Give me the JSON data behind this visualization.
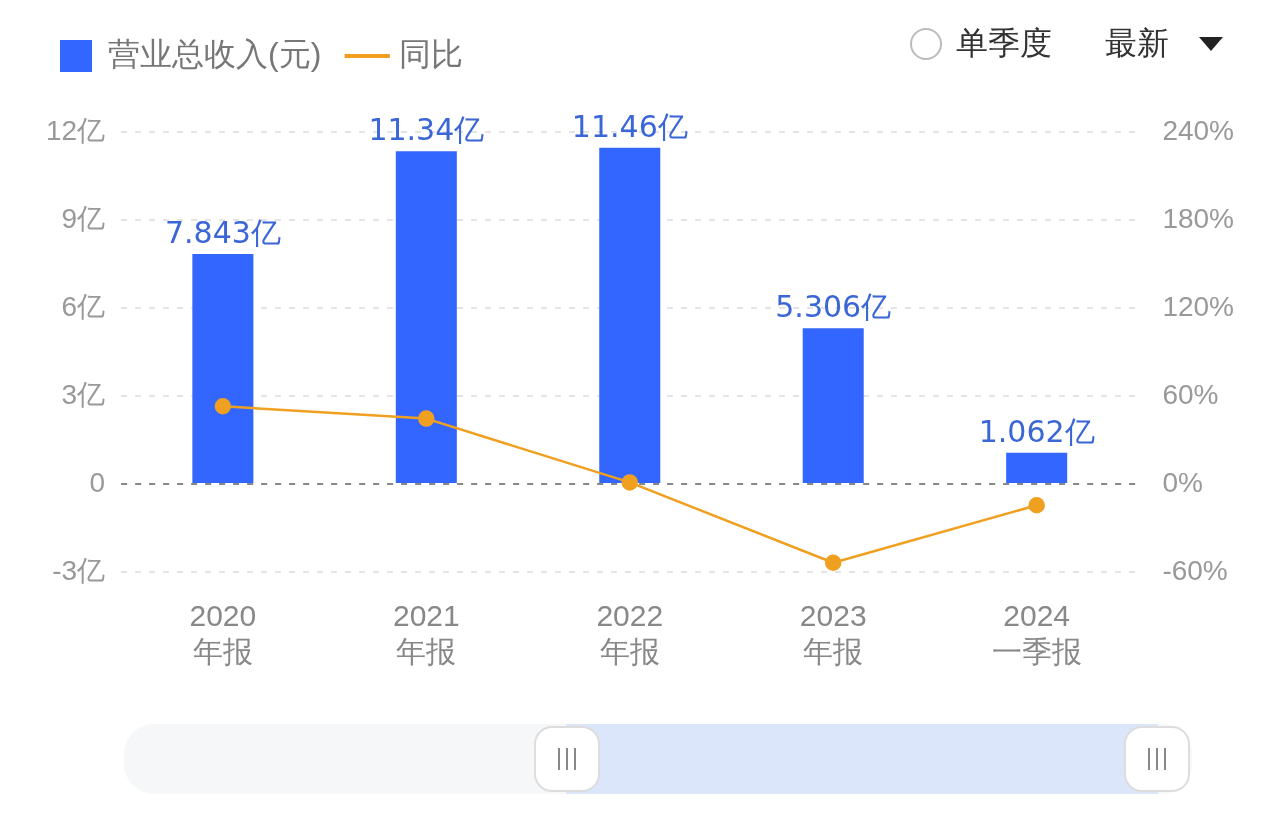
{
  "chart_data": {
    "type": "bar",
    "categories": [
      "2020\n年报",
      "2021\n年报",
      "2022\n年报",
      "2023\n年报",
      "2024\n一季报"
    ],
    "series": [
      {
        "name": "营业总收入(元)",
        "color": "#3366ff",
        "values": [
          7.843,
          11.34,
          11.46,
          5.306,
          1.062
        ],
        "value_labels": [
          "7.843亿",
          "11.34亿",
          "11.46亿",
          "5.306亿",
          "1.062亿"
        ]
      },
      {
        "name": "同比",
        "type": "line",
        "axis": "y2",
        "color": "#f0a020",
        "values": [
          53,
          44.6,
          1.1,
          -53.7,
          -14.5
        ]
      }
    ],
    "ylim": [
      -3,
      12
    ],
    "yticks": [
      {
        "value": -3,
        "label": "-3亿"
      },
      {
        "value": 0,
        "label": "0"
      },
      {
        "value": 3,
        "label": "3亿"
      },
      {
        "value": 6,
        "label": "6亿"
      },
      {
        "value": 9,
        "label": "9亿"
      },
      {
        "value": 12,
        "label": "12亿"
      }
    ],
    "y2lim": [
      -60,
      240
    ],
    "y2ticks": [
      {
        "value": -60,
        "label": "-60%"
      },
      {
        "value": 0,
        "label": "0%"
      },
      {
        "value": 60,
        "label": "60%"
      },
      {
        "value": 120,
        "label": "120%"
      },
      {
        "value": 180,
        "label": "180%"
      },
      {
        "value": 240,
        "label": "240%"
      }
    ],
    "ref_lines": [
      {
        "axis": "y",
        "value": 0,
        "color": "#888888",
        "line_style": "dashed"
      }
    ],
    "grid": "y",
    "legend": "top left",
    "marker": "circle",
    "line_style": "solid",
    "annotations": [
      "单季度",
      "最新"
    ]
  }
}
